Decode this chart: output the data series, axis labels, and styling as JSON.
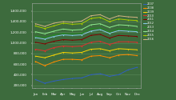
{
  "months": [
    "Jan",
    "Feb",
    "Mar",
    "Apr",
    "May",
    "Jun",
    "Jul",
    "Aug",
    "Sep",
    "Oct",
    "Nov",
    "Dec"
  ],
  "series": [
    {
      "label": "2007",
      "color": "#3060c0",
      "marker": "o",
      "values": [
        310000,
        240000,
        280000,
        310000,
        330000,
        340000,
        400000,
        420000,
        370000,
        400000,
        490000,
        540000
      ]
    },
    {
      "label": "2008",
      "color": "#ff8c00",
      "marker": "s",
      "values": [
        650000,
        570000,
        640000,
        690000,
        690000,
        680000,
        750000,
        760000,
        720000,
        770000,
        780000,
        760000
      ]
    },
    {
      "label": "2009",
      "color": "#ffd700",
      "marker": "^",
      "values": [
        750000,
        720000,
        770000,
        820000,
        810000,
        820000,
        880000,
        890000,
        850000,
        890000,
        880000,
        870000
      ]
    },
    {
      "label": "2010",
      "color": "#e03030",
      "marker": "D",
      "values": [
        880000,
        850000,
        910000,
        940000,
        930000,
        940000,
        1010000,
        1030000,
        970000,
        1020000,
        1020000,
        1010000
      ]
    },
    {
      "label": "2011",
      "color": "#800000",
      "marker": "v",
      "values": [
        1010000,
        980000,
        1030000,
        1060000,
        1050000,
        1060000,
        1140000,
        1160000,
        1090000,
        1140000,
        1130000,
        1120000
      ]
    },
    {
      "label": "2012",
      "color": "#87ceeb",
      "marker": "o",
      "values": [
        1100000,
        1070000,
        1120000,
        1150000,
        1140000,
        1150000,
        1220000,
        1250000,
        1180000,
        1230000,
        1220000,
        1210000
      ]
    },
    {
      "label": "2013",
      "color": "#228b22",
      "marker": "s",
      "values": [
        1130000,
        1100000,
        1150000,
        1180000,
        1170000,
        1180000,
        1270000,
        1280000,
        1210000,
        1260000,
        1250000,
        1240000
      ]
    },
    {
      "label": "2014",
      "color": "#90ee90",
      "marker": "^",
      "values": [
        1210000,
        1170000,
        1220000,
        1260000,
        1240000,
        1250000,
        1340000,
        1360000,
        1290000,
        1340000,
        1330000,
        1310000
      ]
    },
    {
      "label": "2015",
      "color": "#aacc00",
      "marker": "D",
      "values": [
        1320000,
        1270000,
        1320000,
        1370000,
        1350000,
        1360000,
        1460000,
        1480000,
        1400000,
        1450000,
        1430000,
        1420000
      ]
    },
    {
      "label": "2016",
      "color": "#d4b483",
      "marker": "v",
      "values": [
        1360000,
        1310000,
        1370000,
        1400000,
        1390000,
        1410000,
        1510000,
        1530000,
        1450000,
        1510000,
        1490000,
        1480000
      ]
    }
  ],
  "ylim": [
    150000,
    1750000
  ],
  "ytick_values": [
    200000,
    400000,
    600000,
    800000,
    1000000,
    1200000,
    1400000,
    1600000
  ],
  "ytick_labels": [
    "200,000",
    "400,000",
    "600,000",
    "800,000",
    "1,000,000",
    "1,200,000",
    "1,400,000",
    "1,600,000"
  ],
  "background_color": "#3d6b3d",
  "plot_bg_color": "#3d6b3d",
  "grid_color": "#5a8a5a",
  "text_color": "#ffffff",
  "spine_color": "#aaaaaa"
}
